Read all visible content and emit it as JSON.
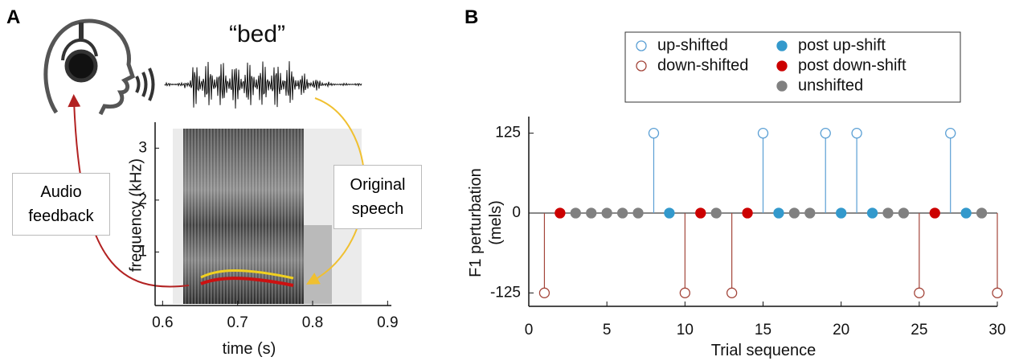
{
  "diagram": {
    "word": "“bed”",
    "feedback_label": "Audio feedback",
    "original_label": "Original speech"
  },
  "chart_data": [
    {
      "type": "spectrogram",
      "panel_label": "A",
      "xlabel": "time (s)",
      "ylabel": "frequency (kHz)",
      "xlim": [
        0.59,
        0.905
      ],
      "xticks": [
        0.6,
        0.7,
        0.8,
        0.9
      ],
      "ylim": [
        0,
        3.5
      ],
      "yticks": [
        1,
        2,
        3
      ]
    },
    {
      "type": "stem",
      "panel_label": "B",
      "xlabel": "Trial sequence",
      "ylabel": "F1 perturbation (mels)",
      "xlim": [
        0,
        30
      ],
      "xticks": [
        0,
        5,
        10,
        15,
        20,
        25,
        30
      ],
      "ylim": [
        -146,
        151
      ],
      "yticks": [
        125,
        0,
        -125
      ],
      "legend": "top",
      "series": [
        {
          "name": "up-shifted",
          "color": "#5a9fd4",
          "marker": "open",
          "x": [
            8,
            15,
            19,
            21,
            27
          ],
          "values": [
            125,
            125,
            125,
            125,
            125
          ]
        },
        {
          "name": "down-shifted",
          "color": "#a3453a",
          "marker": "open",
          "x": [
            1,
            10,
            13,
            25,
            30
          ],
          "values": [
            -125,
            -125,
            -125,
            -125,
            -125
          ]
        },
        {
          "name": "post up-shift",
          "color": "#3399cc",
          "marker": "filled",
          "x": [
            9,
            16,
            20,
            22,
            28
          ],
          "values": [
            0,
            0,
            0,
            0,
            0
          ]
        },
        {
          "name": "post down-shift",
          "color": "#cc0000",
          "marker": "filled",
          "x": [
            2,
            11,
            14,
            26
          ],
          "values": [
            0,
            0,
            0,
            0
          ]
        },
        {
          "name": "unshifted",
          "color": "#808080",
          "marker": "filled",
          "x": [
            3,
            4,
            5,
            6,
            7,
            12,
            17,
            18,
            23,
            24,
            29
          ],
          "values": [
            0,
            0,
            0,
            0,
            0,
            0,
            0,
            0,
            0,
            0,
            0
          ]
        }
      ]
    }
  ]
}
